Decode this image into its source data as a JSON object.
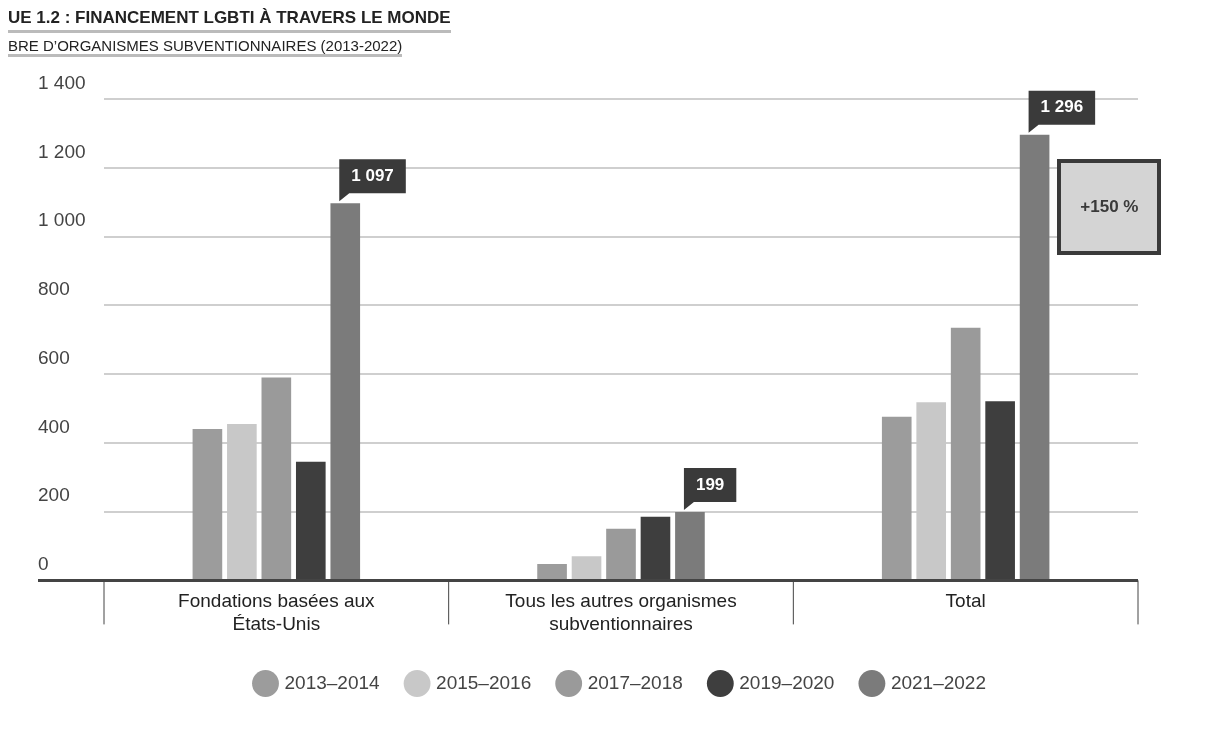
{
  "chart_data": {
    "type": "bar",
    "title": "UE 1.2 : FINANCEMENT LGBTI À TRAVERS LE MONDE",
    "subtitle": "BRE D’ORGANISMES SUBVENTIONNAIRES (2013-2022)",
    "categories": [
      "Fondations basées aux États-Unis",
      "Tous les autres organismes subventionnaires",
      "Total"
    ],
    "series": [
      {
        "name": "2013–2014",
        "color": "#9c9c9c",
        "values": [
          440,
          48,
          476
        ]
      },
      {
        "name": "2015–2016",
        "color": "#c8c8c8",
        "values": [
          455,
          70,
          518
        ]
      },
      {
        "name": "2017–2018",
        "color": "#9a9a9a",
        "values": [
          590,
          150,
          735
        ]
      },
      {
        "name": "2019–2020",
        "color": "#3e3e3e",
        "values": [
          345,
          185,
          521
        ]
      },
      {
        "name": "2021–2022",
        "color": "#7b7b7b",
        "values": [
          1097,
          199,
          1296
        ],
        "value_labels": [
          "1 097",
          "199",
          "1 296"
        ]
      }
    ],
    "ylim": [
      0,
      1400
    ],
    "yticks": [
      {
        "value": 0,
        "label": "0"
      },
      {
        "value": 200,
        "label": "200"
      },
      {
        "value": 400,
        "label": "400"
      },
      {
        "value": 600,
        "label": "600"
      },
      {
        "value": 800,
        "label": "800"
      },
      {
        "value": 1000,
        "label": "1 000"
      },
      {
        "value": 1200,
        "label": "1 200"
      },
      {
        "value": 1400,
        "label": "1 400"
      }
    ],
    "grid": "y",
    "legend": "bottom",
    "marker": "circle",
    "annotations": [
      "+150 %"
    ]
  }
}
